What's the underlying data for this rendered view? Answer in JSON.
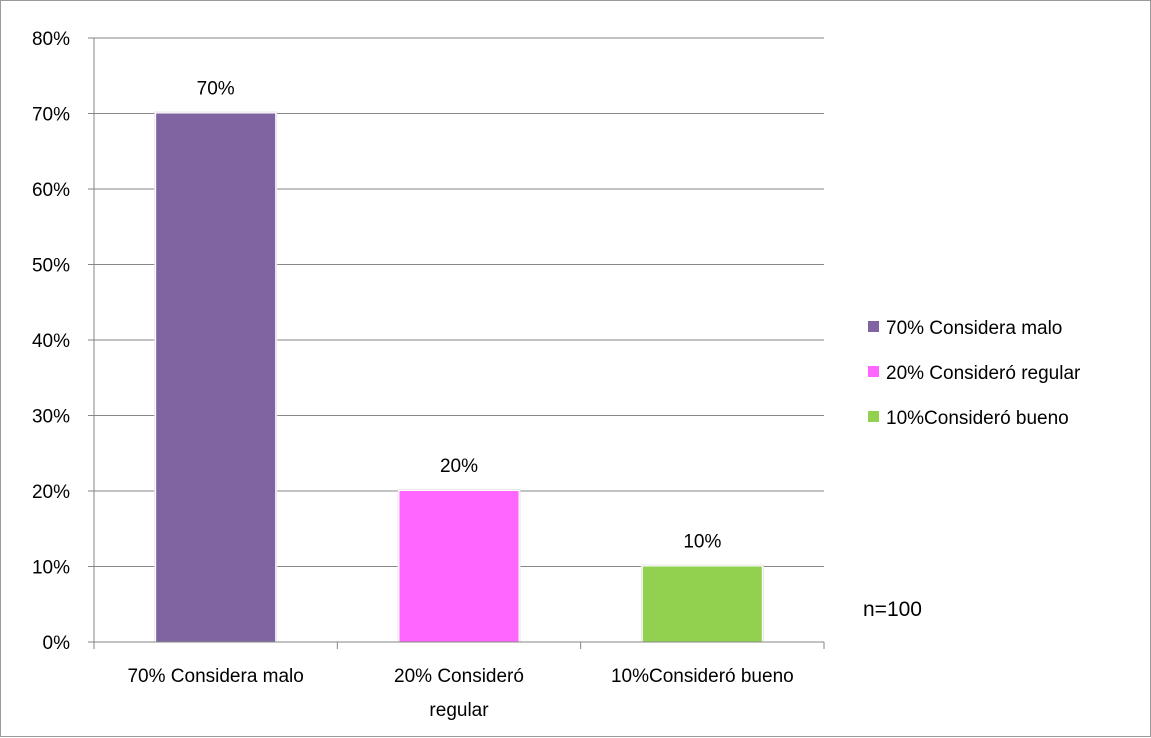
{
  "chart_data": {
    "type": "bar",
    "categories": [
      [
        "70% Considera malo"
      ],
      [
        "20% Consideró",
        "regular"
      ],
      [
        "10%Consideró bueno"
      ]
    ],
    "values": [
      70,
      20,
      10
    ],
    "value_labels": [
      "70%",
      "20%",
      "10%"
    ],
    "colors": [
      "#8064a2",
      "#ff66ff",
      "#92d050"
    ],
    "yticks": [
      "0%",
      "10%",
      "20%",
      "30%",
      "40%",
      "50%",
      "60%",
      "70%",
      "80%"
    ],
    "ylim": [
      0,
      80
    ],
    "grid": true,
    "legend": {
      "position": "right",
      "entries": [
        "70% Considera malo",
        "20% Consideró regular",
        "10%Consideró bueno"
      ]
    },
    "note": "n=100"
  }
}
